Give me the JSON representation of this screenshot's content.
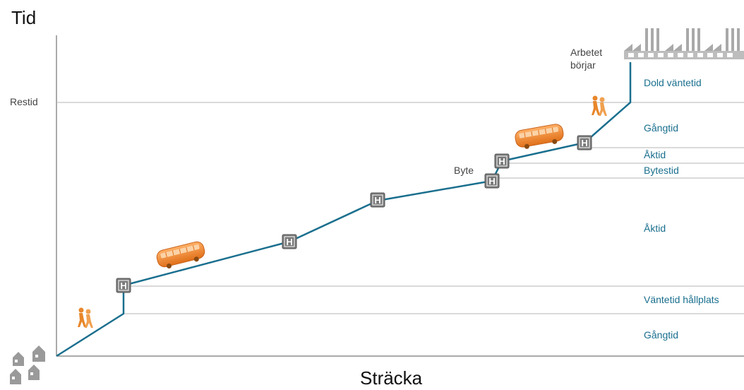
{
  "axes": {
    "y_title": "Tid",
    "x_title": "Sträcka",
    "restid_label": "Restid"
  },
  "annotations": {
    "arbetet_line1": "Arbetet",
    "arbetet_line2": "börjar",
    "byte": "Byte"
  },
  "stop_symbol": "H",
  "band_labels": [
    "Dold väntetid",
    "Gångtid",
    "Åktid",
    "Bytestid",
    "Åktid",
    "Väntetid hållplats",
    "Gångtid"
  ],
  "colors": {
    "route_line": "#1a6f8e",
    "band_text": "#1a6f8e",
    "guide_line": "#b5b5b5",
    "bus": "#f28c28",
    "walker": "#e8862a",
    "stop_fill": "#7a7a7a",
    "building": "#9a9a9a"
  }
}
